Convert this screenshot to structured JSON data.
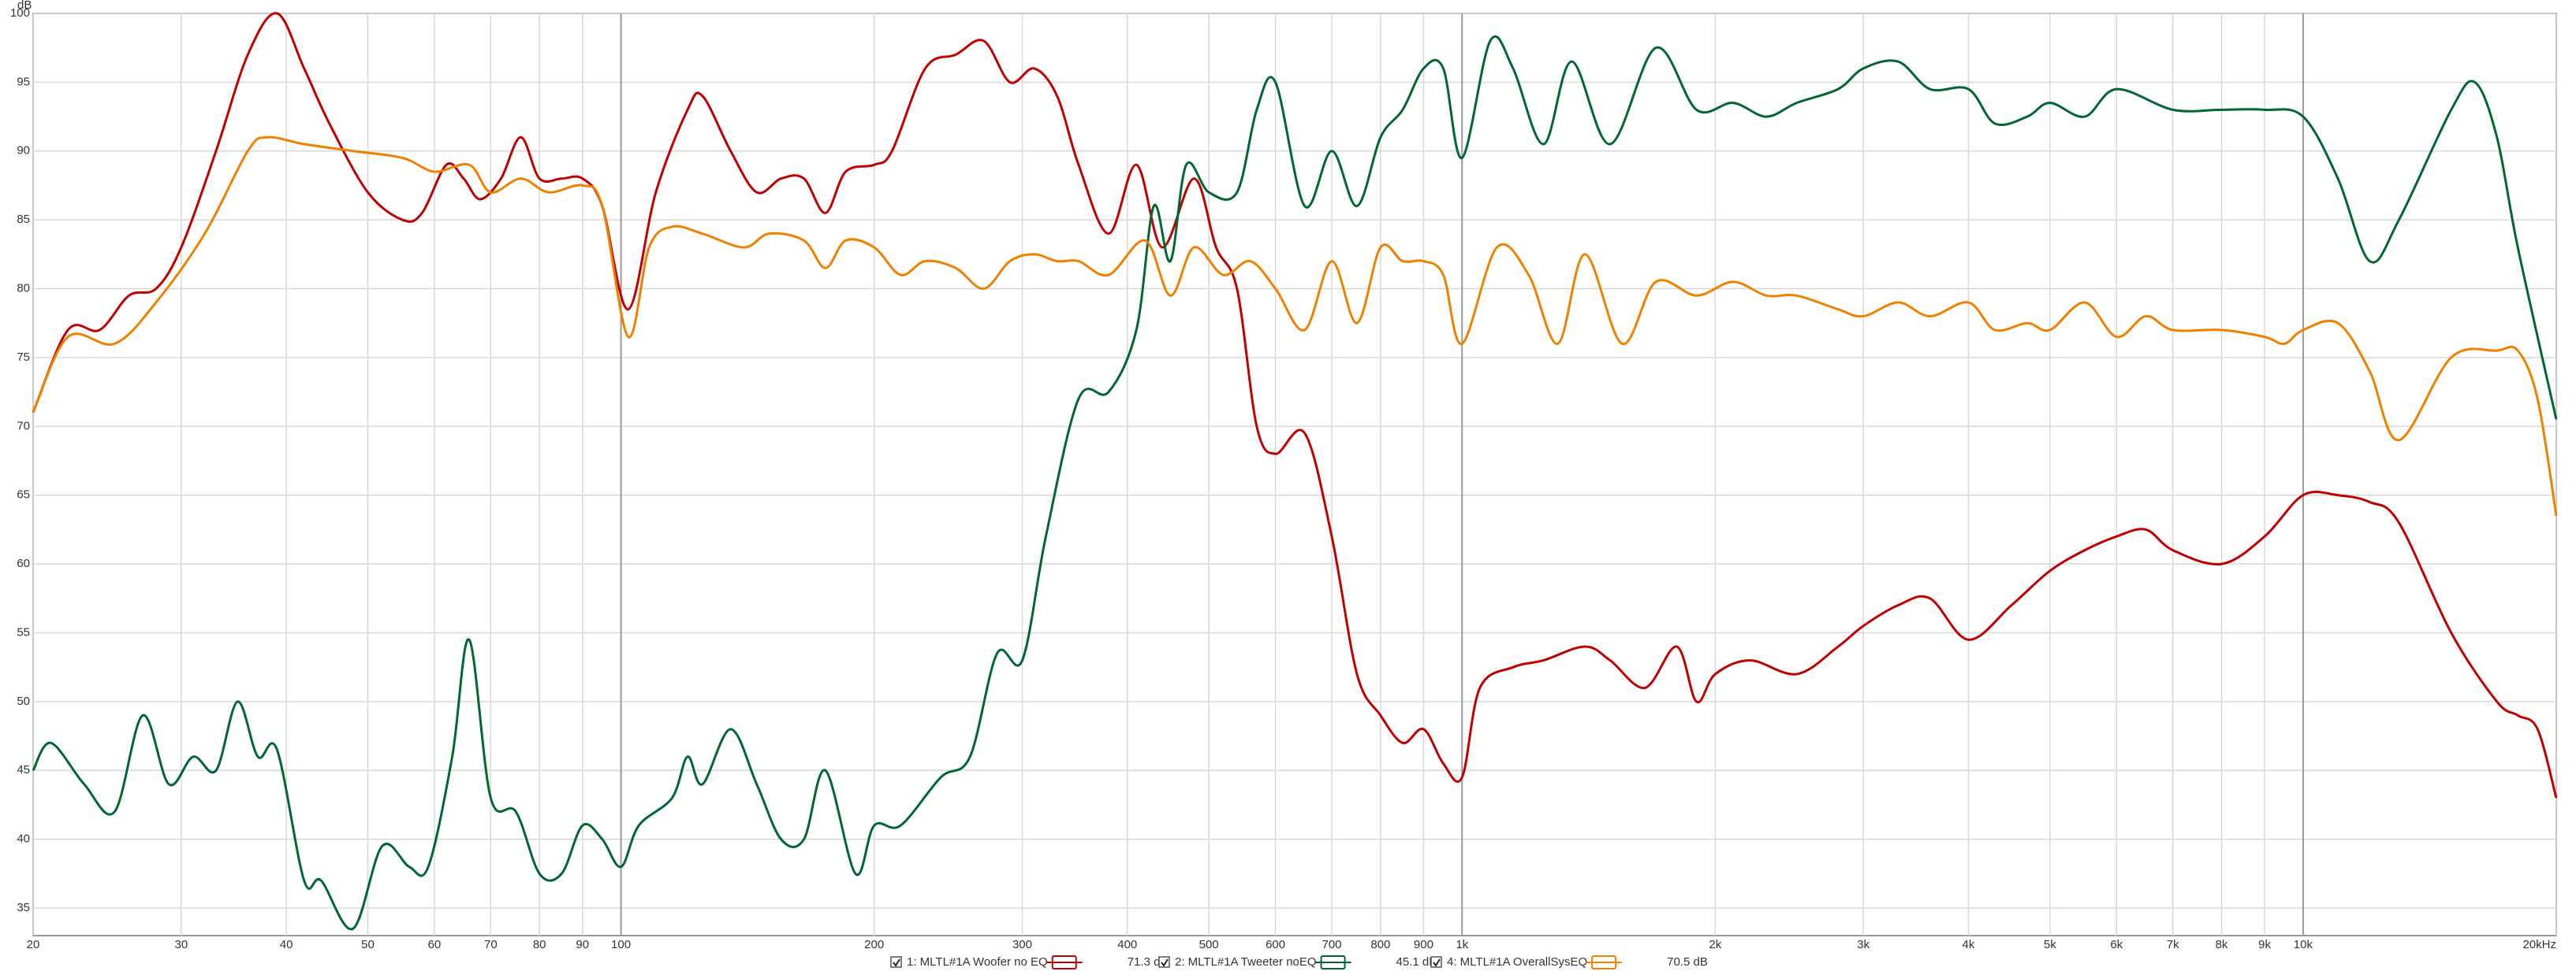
{
  "chart_data": {
    "type": "line",
    "ylabel": "dB",
    "log_x": true,
    "grid": true,
    "xlim": [
      20,
      20000
    ],
    "ylim": [
      33,
      100
    ],
    "xticks": [
      20,
      30,
      40,
      50,
      60,
      70,
      80,
      90,
      100,
      200,
      300,
      400,
      500,
      600,
      700,
      800,
      900,
      {
        "value": 1000,
        "label": "1k"
      },
      {
        "value": 2000,
        "label": "2k"
      },
      {
        "value": 3000,
        "label": "3k"
      },
      {
        "value": 4000,
        "label": "4k"
      },
      {
        "value": 5000,
        "label": "5k"
      },
      {
        "value": 6000,
        "label": "6k"
      },
      {
        "value": 7000,
        "label": "7k"
      },
      {
        "value": 8000,
        "label": "8k"
      },
      {
        "value": 9000,
        "label": "9k"
      },
      {
        "value": 10000,
        "label": "10k"
      },
      {
        "value": 20000,
        "label": "20kHz"
      }
    ],
    "yticks": [
      35,
      40,
      45,
      50,
      55,
      60,
      65,
      70,
      75,
      80,
      85,
      90,
      95,
      100
    ],
    "series": [
      {
        "name": "1: MLTL#1A Woofer no EQ",
        "level": "71.3 dB",
        "color": "#c00000",
        "x": [
          20,
          22,
          24,
          26,
          28,
          30,
          33,
          36,
          39,
          42,
          45,
          50,
          55,
          58,
          62,
          65,
          68,
          72,
          76,
          80,
          85,
          90,
          95,
          102,
          110,
          120,
          125,
          135,
          145,
          155,
          165,
          175,
          185,
          200,
          210,
          230,
          250,
          270,
          290,
          310,
          330,
          350,
          380,
          410,
          440,
          480,
          510,
          540,
          570,
          600,
          650,
          700,
          750,
          800,
          850,
          900,
          950,
          1000,
          1050,
          1150,
          1250,
          1400,
          1500,
          1650,
          1800,
          1900,
          2000,
          2200,
          2500,
          2800,
          3000,
          3300,
          3600,
          4000,
          4500,
          5000,
          5500,
          6000,
          6500,
          7000,
          8000,
          9000,
          10000,
          11000,
          12000,
          13000,
          15000,
          17000,
          18000,
          19000,
          20000
        ],
        "values": [
          71,
          77,
          77,
          79.5,
          80,
          83,
          90,
          97,
          100,
          96,
          92,
          87,
          85,
          85.5,
          89,
          88,
          86.5,
          88,
          91,
          88,
          88,
          88,
          86,
          78.5,
          87,
          93,
          94,
          90,
          87,
          88,
          88,
          85.5,
          88.5,
          89,
          90,
          96,
          97,
          98,
          95,
          96,
          94,
          89,
          84,
          89,
          83,
          88,
          83,
          80,
          70,
          68,
          69.5,
          62,
          52,
          49,
          47,
          48,
          45.5,
          44.5,
          51,
          52.5,
          53,
          54,
          53,
          51,
          54,
          50,
          52,
          53,
          52,
          54,
          55.5,
          57,
          57.5,
          54.5,
          57,
          59.5,
          61,
          62,
          62.5,
          61,
          60,
          62,
          65,
          65,
          64.5,
          63,
          55,
          50,
          49,
          48,
          43
        ]
      },
      {
        "name": "2: MLTL#1A Tweeter noEQ",
        "level": "45.1 dB",
        "color": "#006633",
        "x": [
          20,
          21,
          23,
          25,
          27,
          29,
          31,
          33,
          35,
          37,
          39,
          42,
          44,
          48,
          52,
          56,
          59,
          63,
          66,
          70,
          75,
          80,
          85,
          90,
          95,
          100,
          105,
          115,
          120,
          125,
          135,
          145,
          155,
          165,
          175,
          190,
          200,
          215,
          240,
          260,
          280,
          300,
          320,
          350,
          380,
          410,
          430,
          450,
          470,
          500,
          540,
          570,
          600,
          650,
          700,
          750,
          800,
          850,
          900,
          950,
          1000,
          1080,
          1150,
          1250,
          1350,
          1500,
          1700,
          1900,
          2100,
          2300,
          2500,
          2800,
          3000,
          3300,
          3600,
          4000,
          4300,
          4700,
          5000,
          5500,
          6000,
          7000,
          8000,
          9000,
          10000,
          11000,
          12000,
          13000,
          15000,
          16000,
          17000,
          18000,
          20000
        ],
        "values": [
          45,
          47,
          44,
          42,
          49,
          44,
          46,
          45,
          50,
          46,
          46.5,
          37,
          37,
          33.5,
          39.5,
          38,
          38,
          46,
          54.5,
          43,
          42,
          37.5,
          37.5,
          41,
          40,
          38,
          41,
          43,
          46,
          44,
          48,
          44,
          40,
          40,
          45,
          37.5,
          41,
          41,
          44.5,
          46,
          53.5,
          53,
          62,
          72,
          72.5,
          77,
          86,
          82,
          89,
          87,
          87,
          93,
          95,
          86,
          90,
          86,
          91,
          93,
          96,
          96,
          89.5,
          98,
          96,
          90.5,
          96.5,
          90.5,
          97.5,
          93,
          93.5,
          92.5,
          93.5,
          94.5,
          96,
          96.5,
          94.5,
          94.5,
          92,
          92.5,
          93.5,
          92.5,
          94.5,
          93,
          93,
          93,
          92.5,
          88,
          82,
          85,
          93,
          95,
          91,
          83,
          70.5
        ]
      },
      {
        "name": "4: MLTL#1A OverallSysEQ",
        "level": "70.5 dB",
        "color": "#f08000",
        "x": [
          20,
          22,
          25,
          28,
          32,
          36,
          38,
          42,
          48,
          55,
          60,
          66,
          70,
          76,
          82,
          90,
          95,
          102,
          108,
          115,
          125,
          140,
          150,
          165,
          175,
          185,
          200,
          215,
          230,
          250,
          270,
          290,
          310,
          330,
          350,
          380,
          420,
          450,
          480,
          520,
          560,
          600,
          650,
          700,
          750,
          800,
          850,
          900,
          950,
          1000,
          1100,
          1200,
          1300,
          1400,
          1550,
          1700,
          1900,
          2100,
          2300,
          2500,
          2800,
          3000,
          3300,
          3600,
          4000,
          4300,
          4700,
          5000,
          5500,
          6000,
          6500,
          7000,
          8000,
          9000,
          9500,
          10000,
          11000,
          12000,
          13000,
          15000,
          17000,
          18000,
          19000,
          20000
        ],
        "values": [
          71,
          76.5,
          76,
          79,
          84,
          90,
          91,
          90.5,
          90,
          89.5,
          88.5,
          89,
          87,
          88,
          87,
          87.5,
          86,
          76.5,
          83,
          84.5,
          84,
          83,
          84,
          83.5,
          81.5,
          83.5,
          83,
          81,
          82,
          81.5,
          80,
          82,
          82.5,
          82,
          82,
          81,
          83.5,
          79.5,
          83,
          81,
          82,
          80,
          77,
          82,
          77.5,
          83,
          82,
          82,
          81,
          76,
          83,
          81,
          76,
          82.5,
          76,
          80.5,
          79.5,
          80.5,
          79.5,
          79.5,
          78.5,
          78,
          79,
          78,
          79,
          77,
          77.5,
          77,
          79,
          76.5,
          78,
          77,
          77,
          76.5,
          76,
          77,
          77.5,
          74,
          69,
          75,
          75.5,
          75.5,
          72,
          63.5
        ]
      }
    ]
  }
}
